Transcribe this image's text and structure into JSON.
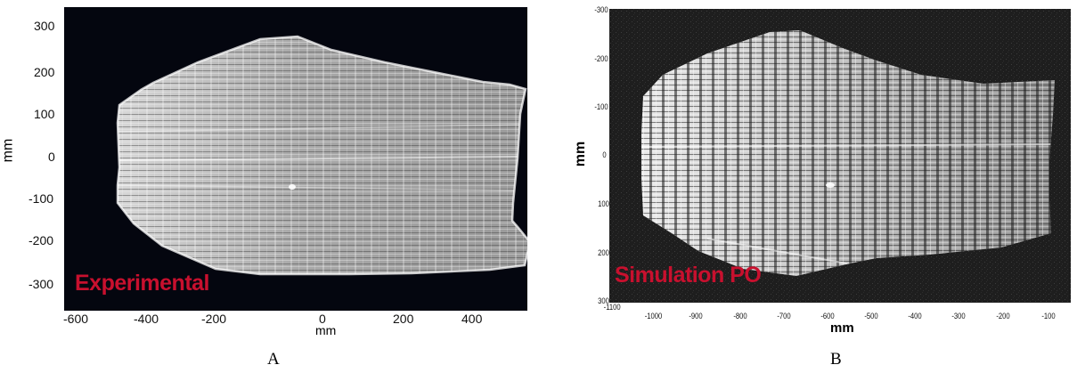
{
  "panel_a": {
    "overlay_label": "Experimental",
    "x_label": "mm",
    "y_label": "mm",
    "x_ticks": [
      "-600",
      "-400",
      "-200",
      "0",
      "200",
      "400"
    ],
    "y_ticks": [
      "300",
      "200",
      "100",
      "0",
      "-100",
      "-200",
      "-300"
    ],
    "caption": "A"
  },
  "panel_b": {
    "overlay_label": "Simulation PO",
    "x_label": "mm",
    "y_label": "mm",
    "x_ticks": [
      "-1100",
      "-1000",
      "-900",
      "-800",
      "-700",
      "-600",
      "-500",
      "-400",
      "-300",
      "-200",
      "-100"
    ],
    "y_ticks": [
      "-300",
      "-200",
      "-100",
      "0",
      "100",
      "200",
      "300"
    ],
    "caption": "B"
  },
  "colors": {
    "label_red": "#c8102e",
    "panel_a_bg": "#04060f",
    "panel_b_bg": "#1e1e1e"
  }
}
